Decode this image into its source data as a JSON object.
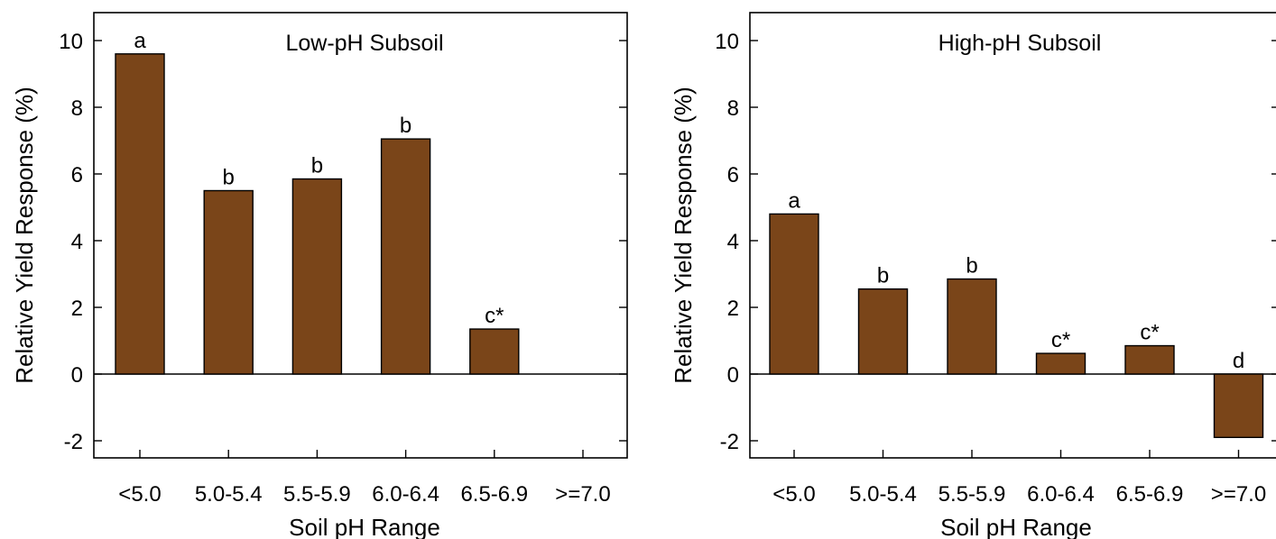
{
  "chart_data": [
    {
      "type": "bar",
      "title": "Low-pH Subsoil",
      "xlabel": "Soil pH Range",
      "ylabel": "Relative Yield Response (%)",
      "ylim": [
        -2.5,
        10.8
      ],
      "yticks": [
        -2,
        0,
        2,
        4,
        6,
        8,
        10
      ],
      "categories": [
        "<5.0",
        "5.0-5.4",
        "5.5-5.9",
        "6.0-6.4",
        "6.5-6.9",
        ">=7.0"
      ],
      "values": [
        9.6,
        5.5,
        5.85,
        7.05,
        1.35,
        null
      ],
      "annotations": [
        "a",
        "b",
        "b",
        "b",
        "c*",
        ""
      ],
      "bar_color": "#7a4519",
      "grid": false
    },
    {
      "type": "bar",
      "title": "High-pH Subsoil",
      "xlabel": "Soil pH Range",
      "ylabel": "Relative Yield Response (%)",
      "ylim": [
        -2.5,
        10.8
      ],
      "yticks": [
        -2,
        0,
        2,
        4,
        6,
        8,
        10
      ],
      "categories": [
        "<5.0",
        "5.0-5.4",
        "5.5-5.9",
        "6.0-6.4",
        "6.5-6.9",
        ">=7.0"
      ],
      "values": [
        4.8,
        2.55,
        2.85,
        0.62,
        0.85,
        -1.9
      ],
      "annotations": [
        "a",
        "b",
        "b",
        "c*",
        "c*",
        "d"
      ],
      "bar_color": "#7a4519",
      "grid": false
    }
  ]
}
